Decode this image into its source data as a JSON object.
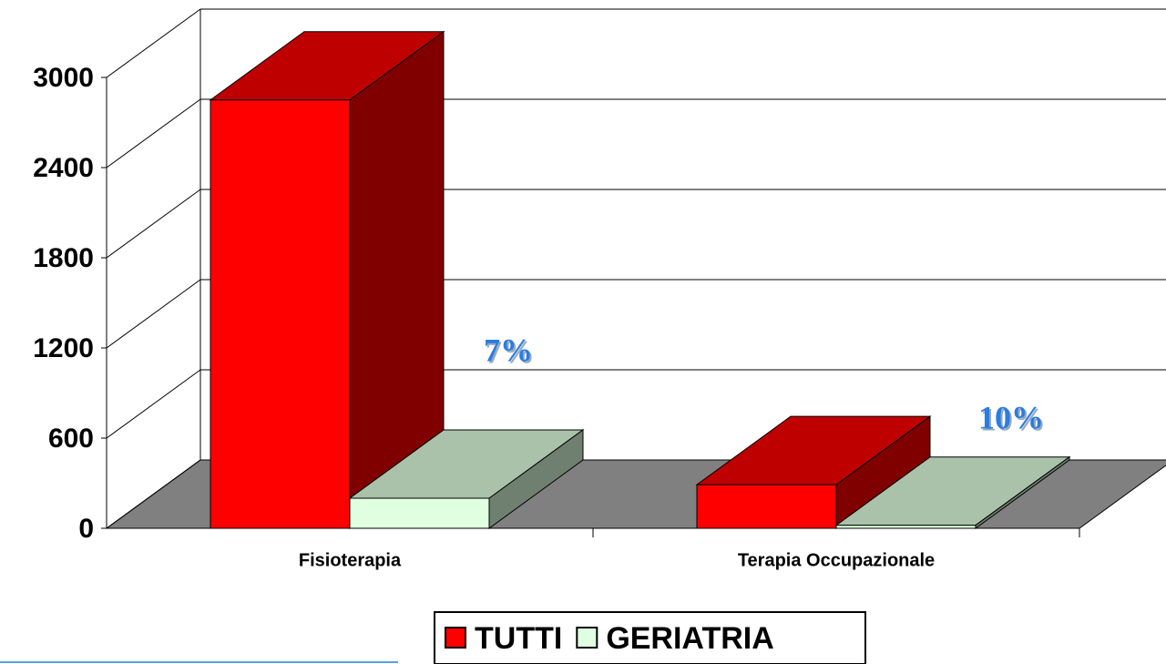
{
  "chart_data": {
    "type": "bar3d",
    "categories": [
      "Fisioterapia",
      "Terapia Occupazionale"
    ],
    "series": [
      {
        "name": "TUTTI",
        "color": "#ff0000",
        "values": [
          2850,
          290
        ]
      },
      {
        "name": "GERIATRIA",
        "color": "#e0ffe0",
        "values": [
          200,
          20
        ]
      }
    ],
    "ylim": [
      0,
      3000
    ],
    "yticks": [
      0,
      600,
      1200,
      1800,
      2400,
      3000
    ],
    "grid": true,
    "annotations": [
      "7%",
      "10%"
    ]
  }
}
